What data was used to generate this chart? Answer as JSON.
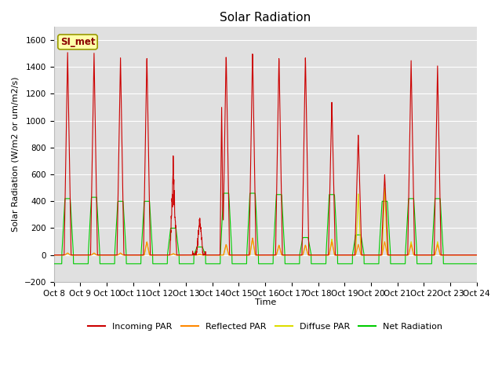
{
  "title": "Solar Radiation",
  "ylabel": "Solar Radiation (W/m2 or um/m2/s)",
  "xlabel": "Time",
  "ylim": [
    -200,
    1700
  ],
  "yticks": [
    -200,
    0,
    200,
    400,
    600,
    800,
    1000,
    1200,
    1400,
    1600
  ],
  "annotation": "SI_met",
  "legend": [
    "Incoming PAR",
    "Reflected PAR",
    "Diffuse PAR",
    "Net Radiation"
  ],
  "legend_colors": [
    "#cc0000",
    "#ff8800",
    "#dddd00",
    "#00cc00"
  ],
  "line_colors": {
    "incoming": "#cc0000",
    "reflected": "#ff8800",
    "diffuse": "#dddd00",
    "net": "#00cc00"
  },
  "background_color": "#ffffff",
  "plot_bg_color": "#e0e0e0",
  "grid_color": "#ffffff",
  "title_fontsize": 11,
  "axis_fontsize": 8,
  "tick_fontsize": 7.5,
  "day_peaks_incoming": [
    1520,
    1520,
    1490,
    1490,
    780,
    260,
    1510,
    1530,
    1490,
    1490,
    1150,
    900,
    600,
    1450,
    1410,
    0
  ],
  "day_peaks_net": [
    420,
    430,
    400,
    400,
    200,
    60,
    460,
    460,
    450,
    130,
    450,
    150,
    400,
    420,
    420,
    0
  ],
  "day_peaks_reflected": [
    15,
    15,
    15,
    100,
    10,
    5,
    80,
    130,
    75,
    75,
    100,
    80,
    100,
    80,
    80,
    0
  ],
  "day_peaks_diffuse": [
    15,
    15,
    15,
    100,
    10,
    5,
    80,
    130,
    75,
    75,
    120,
    460,
    500,
    100,
    100,
    0
  ],
  "night_net": -65,
  "n_points_per_day": 144,
  "n_days": 16
}
